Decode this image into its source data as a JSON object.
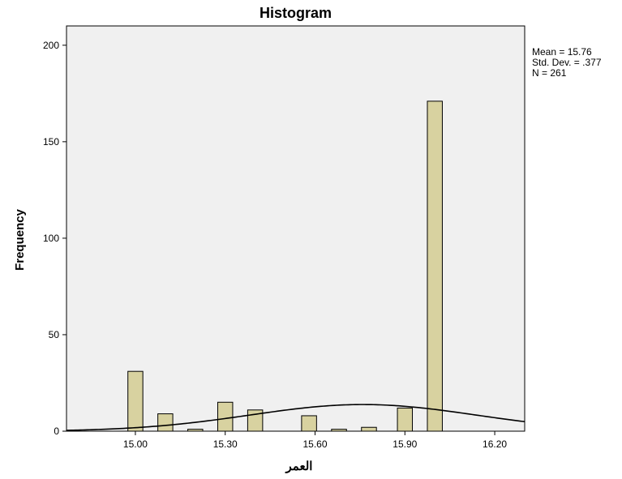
{
  "chart_data": {
    "type": "bar",
    "title": "Histogram",
    "xlabel": "العمر",
    "ylabel": "Frequency",
    "xlim": [
      14.77,
      16.3
    ],
    "ylim": [
      0,
      210
    ],
    "x_ticks": [
      15.0,
      15.3,
      15.6,
      15.9,
      16.2
    ],
    "x_tick_labels": [
      "15.00",
      "15.30",
      "15.60",
      "15.90",
      "16.20"
    ],
    "y_ticks": [
      0,
      50,
      100,
      150,
      200
    ],
    "y_tick_labels": [
      "0",
      "50",
      "100",
      "150",
      "200"
    ],
    "bin_width": 0.05,
    "bins": [
      {
        "x": 15.0,
        "count": 31
      },
      {
        "x": 15.1,
        "count": 9
      },
      {
        "x": 15.2,
        "count": 1
      },
      {
        "x": 15.3,
        "count": 15
      },
      {
        "x": 15.4,
        "count": 11
      },
      {
        "x": 15.58,
        "count": 8
      },
      {
        "x": 15.68,
        "count": 1
      },
      {
        "x": 15.78,
        "count": 2
      },
      {
        "x": 15.9,
        "count": 12
      },
      {
        "x": 16.0,
        "count": 171
      }
    ],
    "normal_curve": {
      "mean": 15.76,
      "sd": 0.377,
      "n": 261,
      "bin_width": 0.05
    },
    "stats": {
      "mean": "Mean = 15.76",
      "sd": "Std. Dev. = .377",
      "n": "N = 261"
    },
    "colors": {
      "bar_fill": "#d8d2a0",
      "bar_stroke": "#000000",
      "plot_bg": "#f0f0f0",
      "curve": "#000000"
    },
    "grid": false,
    "legend": "none"
  }
}
